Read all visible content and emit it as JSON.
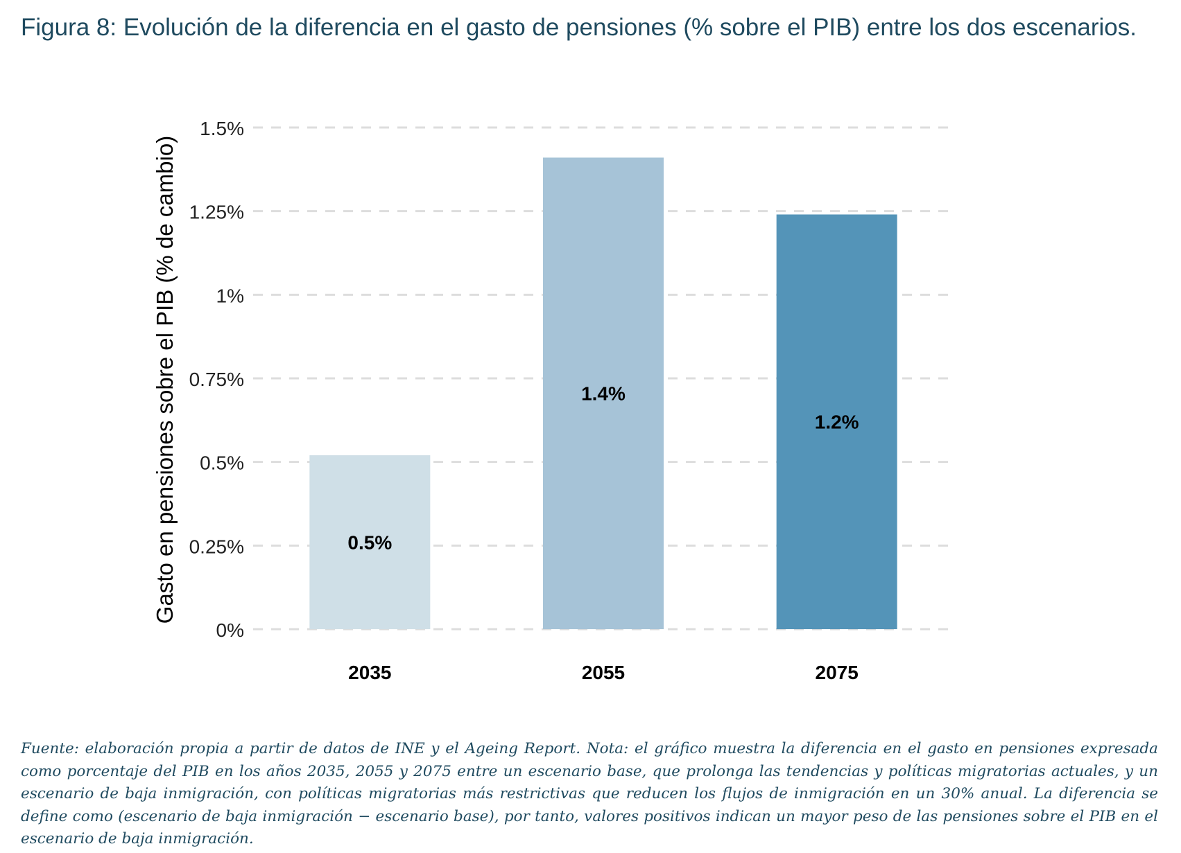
{
  "header": {
    "title": "Figura 8: Evolución de la diferencia en el gasto de pensiones (% sobre el PIB) entre los dos escenarios."
  },
  "footer": {
    "note": "Fuente: elaboración propia a partir de datos de INE y el Ageing Report. Nota: el gráfico muestra la diferencia en el gasto en pensiones expresada como porcentaje del PIB en los años 2035, 2055 y 2075 entre un escenario base, que prolonga las tendencias y políticas migratorias actuales, y un escenario de baja inmigración, con políticas migratorias más restrictivas que reducen los flujos de inmigración en un 30% anual. La diferencia se define como (escenario de baja inmigración − escenario base), por tanto, valores positivos indican un mayor peso de las pensiones sobre el PIB en el escenario de baja inmigración."
  },
  "chart_data": {
    "type": "bar",
    "title": "",
    "xlabel": "",
    "ylabel": "Gasto en pensiones sobre el PIB (% de cambio)",
    "categories": [
      "2035",
      "2055",
      "2075"
    ],
    "values": [
      0.52,
      1.41,
      1.24
    ],
    "data_labels": [
      "0.5%",
      "1.4%",
      "1.2%"
    ],
    "bar_colors": [
      "#cfdfe7",
      "#a6c3d7",
      "#5494b8"
    ],
    "ylim": [
      0,
      1.5
    ],
    "yticks": [
      0,
      0.25,
      0.5,
      0.75,
      1,
      1.25,
      1.5
    ],
    "ytick_labels": [
      "0%",
      "0.25%",
      "0.5%",
      "0.75%",
      "1%",
      "1.25%",
      "1.5%"
    ],
    "grid": "horizontal dashed",
    "grid_color": "#dddddd",
    "legend": "none"
  }
}
